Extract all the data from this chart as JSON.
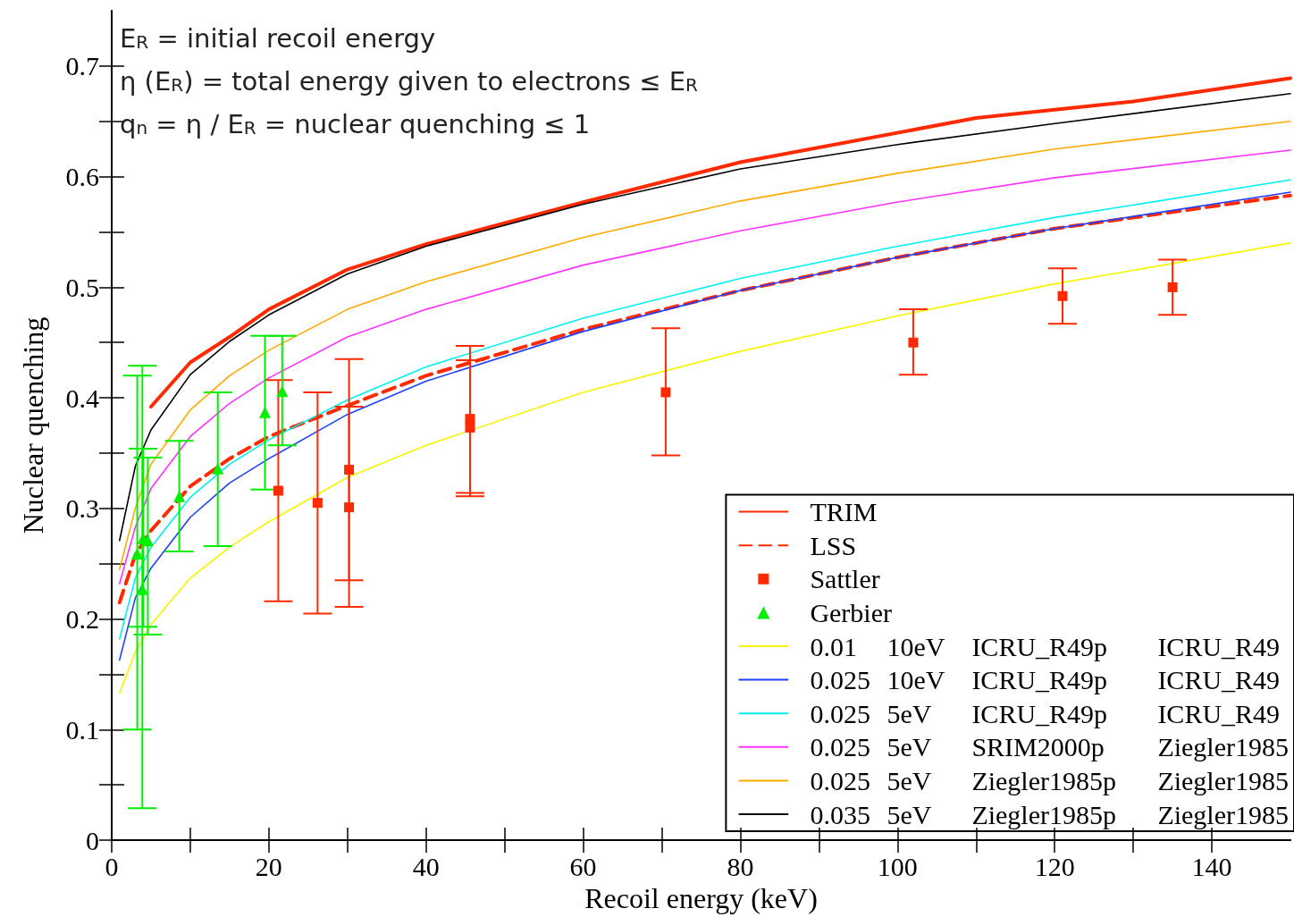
{
  "chart_data": {
    "type": "line",
    "xlabel": "Recoil energy (keV)",
    "ylabel": "Nuclear quenching",
    "xlim": [
      0,
      150
    ],
    "ylim": [
      0,
      0.75
    ],
    "xticks": [
      0,
      {
        "value": 10,
        "label": null
      },
      20,
      {
        "value": 30,
        "label": null
      },
      40,
      {
        "value": 50,
        "label": null
      },
      60,
      {
        "value": 70,
        "label": null
      },
      80,
      {
        "value": 90,
        "label": null
      },
      100,
      {
        "value": 110,
        "label": null
      },
      120,
      {
        "value": 130,
        "label": null
      },
      140
    ],
    "yticks": [
      0,
      {
        "value": 0.05,
        "label": null
      },
      0.1,
      {
        "value": 0.15,
        "label": null
      },
      0.2,
      {
        "value": 0.25,
        "label": null
      },
      0.3,
      {
        "value": 0.35,
        "label": null
      },
      0.4,
      {
        "value": 0.45,
        "label": null
      },
      0.5,
      {
        "value": 0.55,
        "label": null
      },
      0.6,
      {
        "value": 0.65,
        "label": null
      },
      0.7
    ],
    "grid": false,
    "legend": "bottom right",
    "annotations": [
      "E$_{R}$ = initial recoil energy",
      "η (E$_{R}$) = total energy given to electrons ≤ E$_{R}$",
      "q$_{n}$ = η / E$_{R}$ = nuclear quenching ≤ 1"
    ],
    "series": [
      {
        "name": "TRIM",
        "color": "#ff2a00",
        "marker": "none",
        "line_style": "solid",
        "x": [
          5,
          10,
          15,
          20,
          30,
          40,
          60,
          80,
          110,
          130,
          150
        ],
        "values": [
          0.392,
          0.432,
          0.455,
          0.48,
          0.516,
          0.539,
          0.577,
          0.613,
          0.653,
          0.668,
          0.689
        ]
      },
      {
        "name": "LSS",
        "color": "#ff2a00",
        "marker": "none",
        "line_style": "dashed",
        "x": [
          1,
          3,
          5,
          10,
          15,
          20,
          30,
          40,
          60,
          80,
          100,
          120,
          150
        ],
        "values": [
          0.215,
          0.258,
          0.28,
          0.32,
          0.345,
          0.365,
          0.393,
          0.42,
          0.462,
          0.497,
          0.527,
          0.553,
          0.583
        ]
      },
      {
        "name": "Sattler",
        "type": "scatter",
        "color": "#ff2a00",
        "marker": "square",
        "x": [
          21.2,
          26.2,
          30.2,
          30.2,
          45.6,
          45.6,
          70.5,
          102,
          121,
          135
        ],
        "values": [
          0.316,
          0.305,
          0.335,
          0.301,
          0.381,
          0.373,
          0.405,
          0.45,
          0.492,
          0.5
        ],
        "errors": [
          [
            0.216,
            0.416
          ],
          [
            0.205,
            0.405
          ],
          [
            0.235,
            0.435
          ],
          [
            0.211,
            0.392
          ],
          [
            0.314,
            0.447
          ],
          [
            0.311,
            0.434
          ],
          [
            0.348,
            0.463
          ],
          [
            0.421,
            0.48
          ],
          [
            0.467,
            0.517
          ],
          [
            0.475,
            0.525
          ]
        ]
      },
      {
        "name": "Gerbier",
        "type": "scatter",
        "color": "#00ee00",
        "marker": "triangle",
        "x": [
          3.25,
          3.9,
          4.0,
          4.6,
          8.6,
          13.5,
          19.5,
          21.7
        ],
        "values": [
          0.259,
          0.227,
          0.273,
          0.271,
          0.311,
          0.336,
          0.387,
          0.406
        ],
        "errors": [
          [
            0.1,
            0.42
          ],
          [
            0.029,
            0.429
          ],
          [
            0.193,
            0.354
          ],
          [
            0.186,
            0.346
          ],
          [
            0.261,
            0.361
          ],
          [
            0.266,
            0.405
          ],
          [
            0.317,
            0.456
          ],
          [
            0.357,
            0.456
          ]
        ]
      },
      {
        "name": "0.01 10eV ICRU_R49p ICRU_R49",
        "color": "#f5f500",
        "marker": "none",
        "line_style": "solid",
        "x": [
          1,
          3,
          5,
          10,
          15,
          20,
          30,
          40,
          60,
          80,
          100,
          120,
          150
        ],
        "values": [
          0.133,
          0.17,
          0.195,
          0.237,
          0.265,
          0.288,
          0.328,
          0.357,
          0.405,
          0.442,
          0.474,
          0.503,
          0.54
        ]
      },
      {
        "name": "0.025 10eV ICRU_R49p ICRU_R49",
        "color": "#1f3fff",
        "marker": "none",
        "line_style": "solid",
        "x": [
          1,
          3,
          5,
          10,
          15,
          20,
          30,
          40,
          60,
          80,
          100,
          120,
          150
        ],
        "values": [
          0.163,
          0.219,
          0.246,
          0.292,
          0.323,
          0.345,
          0.385,
          0.415,
          0.46,
          0.497,
          0.527,
          0.553,
          0.586
        ]
      },
      {
        "name": "0.025 5eV ICRU_R49p ICRU_R49",
        "color": "#00f0f0",
        "marker": "none",
        "line_style": "solid",
        "x": [
          1,
          3,
          5,
          10,
          15,
          20,
          30,
          40,
          60,
          80,
          100,
          120,
          150
        ],
        "values": [
          0.182,
          0.237,
          0.265,
          0.31,
          0.34,
          0.362,
          0.398,
          0.428,
          0.472,
          0.508,
          0.537,
          0.563,
          0.597
        ]
      },
      {
        "name": "0.025 5eV SRIM2000p Ziegler1985",
        "color": "#ff33ff",
        "marker": "none",
        "line_style": "solid",
        "x": [
          1,
          3,
          5,
          10,
          15,
          20,
          30,
          40,
          60,
          80,
          100,
          120,
          150
        ],
        "values": [
          0.232,
          0.283,
          0.318,
          0.365,
          0.395,
          0.418,
          0.455,
          0.48,
          0.52,
          0.551,
          0.577,
          0.599,
          0.624
        ]
      },
      {
        "name": "0.025 5eV Ziegler1985p Ziegler1985",
        "color": "#ffaa00",
        "marker": "none",
        "line_style": "solid",
        "x": [
          1,
          3,
          5,
          10,
          15,
          20,
          30,
          40,
          60,
          80,
          100,
          120,
          150
        ],
        "values": [
          0.245,
          0.3,
          0.34,
          0.389,
          0.42,
          0.443,
          0.48,
          0.505,
          0.545,
          0.578,
          0.603,
          0.625,
          0.65
        ]
      },
      {
        "name": "0.035 5eV Ziegler1985p Ziegler1985",
        "color": "#000000",
        "marker": "none",
        "line_style": "solid",
        "x": [
          1,
          3,
          5,
          10,
          15,
          20,
          30,
          40,
          60,
          80,
          100,
          120,
          150
        ],
        "values": [
          0.271,
          0.338,
          0.371,
          0.421,
          0.451,
          0.475,
          0.512,
          0.537,
          0.575,
          0.607,
          0.629,
          0.648,
          0.675
        ]
      }
    ]
  }
}
